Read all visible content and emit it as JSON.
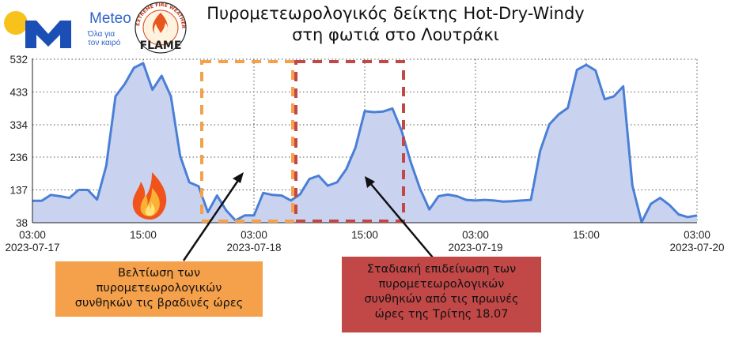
{
  "header": {
    "title_line1": "Πυρομετεωρολογικός δείκτης Hot-Dry-Windy",
    "title_line2": "στη φωτιά στο Λουτράκι"
  },
  "logos": {
    "meteo_name": "Meteo",
    "meteo_tagline_1": "Όλα για",
    "meteo_tagline_2": "τον καιρό",
    "flame_word": "FLAME",
    "flame_ring_text": "EXTREME FIRE WEATHER & FIRE BEHAVIOUR"
  },
  "chart_data": {
    "type": "area",
    "title": "Πυρομετεωρολογικός δείκτης Hot-Dry-Windy στη φωτιά στο Λουτράκι",
    "xlabel": "",
    "ylabel": "",
    "ylim": [
      38,
      532
    ],
    "xlim": [
      0,
      72
    ],
    "grid": true,
    "y_ticks": [
      38,
      137,
      236,
      334,
      433,
      532
    ],
    "x_ticks": [
      {
        "hour": 0,
        "line1": "03:00",
        "line2": "2023-07-17"
      },
      {
        "hour": 12,
        "line1": "15:00",
        "line2": ""
      },
      {
        "hour": 24,
        "line1": "03:00",
        "line2": "2023-07-18"
      },
      {
        "hour": 36,
        "line1": "15:00",
        "line2": ""
      },
      {
        "hour": 48,
        "line1": "03:00",
        "line2": "2023-07-19"
      },
      {
        "hour": 60,
        "line1": "15:00",
        "line2": ""
      },
      {
        "hour": 72,
        "line1": "03:00",
        "line2": "2023-07-20"
      }
    ],
    "series": [
      {
        "color": "#4a7fd6",
        "fill": "#c9d3f0",
        "x": [
          0,
          1,
          2,
          3,
          4,
          5,
          6,
          7,
          8,
          9,
          10,
          11,
          12,
          13,
          14,
          15,
          16,
          17,
          18,
          19,
          20,
          21,
          22,
          23,
          24,
          25,
          26,
          27,
          28,
          29,
          30,
          31,
          32,
          33,
          34,
          35,
          36,
          37,
          38,
          39,
          40,
          41,
          42,
          43,
          44,
          45,
          46,
          47,
          48,
          49,
          50,
          51,
          52,
          53,
          54,
          55,
          56,
          57,
          58,
          59,
          60,
          61,
          62,
          63,
          64,
          65,
          66,
          67,
          68,
          69,
          70,
          71,
          72
        ],
        "values": [
          104,
          104,
          122,
          118,
          113,
          137,
          137,
          108,
          210,
          420,
          457,
          506,
          520,
          440,
          482,
          420,
          240,
          160,
          148,
          70,
          120,
          75,
          45,
          60,
          60,
          128,
          122,
          120,
          105,
          124,
          170,
          180,
          150,
          160,
          200,
          265,
          375,
          372,
          374,
          383,
          315,
          220,
          140,
          78,
          118,
          123,
          118,
          107,
          105,
          107,
          105,
          102,
          103,
          105,
          107,
          255,
          335,
          365,
          385,
          500,
          515,
          498,
          411,
          420,
          450,
          150,
          40,
          95,
          113,
          92,
          63,
          55,
          60
        ]
      }
    ],
    "annotations": {
      "orange_box_text": [
        "Βελτίωση των",
        "πυρομετεωρολογικών",
        "συνθηκών τις βραδινές ώρες"
      ],
      "red_box_text": [
        "Σταδιακή επιδείνωση των",
        "πυρομετεωρολογικών",
        "συνθηκών  από τις πρωινές",
        "ώρες της Τρίτης 18.07"
      ]
    }
  },
  "colors": {
    "line": "#4a7fd6",
    "area_fill": "#c9d3f0",
    "orange_dash": "#f5a04a",
    "red_dash": "#c24848",
    "orange_box": "#f5a04a",
    "red_box": "#c24848"
  }
}
